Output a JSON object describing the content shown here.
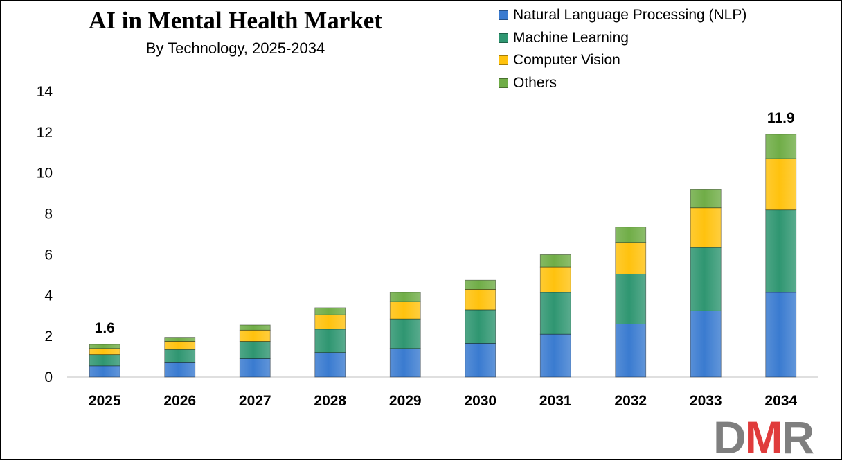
{
  "chart_data": {
    "type": "bar",
    "stacked": true,
    "title": "AI in Mental Health Market",
    "subtitle": "By Technology,  2025-2034",
    "categories": [
      "2025",
      "2026",
      "2027",
      "2028",
      "2029",
      "2030",
      "2031",
      "2032",
      "2033",
      "2034"
    ],
    "series": [
      {
        "name": "Natural Language Processing (NLP)",
        "color": "#3a7bd0",
        "values": [
          0.55,
          0.7,
          0.9,
          1.2,
          1.4,
          1.65,
          2.1,
          2.6,
          3.25,
          4.15
        ]
      },
      {
        "name": "Machine Learning",
        "color": "#2f9671",
        "values": [
          0.55,
          0.65,
          0.85,
          1.15,
          1.45,
          1.65,
          2.05,
          2.45,
          3.1,
          4.05
        ]
      },
      {
        "name": "Computer Vision",
        "color": "#ffc20e",
        "values": [
          0.3,
          0.4,
          0.55,
          0.7,
          0.85,
          1.0,
          1.25,
          1.55,
          1.95,
          2.5
        ]
      },
      {
        "name": "Others",
        "color": "#70ad47",
        "values": [
          0.2,
          0.2,
          0.25,
          0.35,
          0.45,
          0.45,
          0.6,
          0.75,
          0.9,
          1.2
        ]
      }
    ],
    "annotations": [
      {
        "category": "2025",
        "text": "1.6"
      },
      {
        "category": "2034",
        "text": "11.9"
      }
    ],
    "yticks": [
      "0",
      "2",
      "4",
      "6",
      "8",
      "10",
      "12",
      "14"
    ],
    "ylim": [
      0,
      14
    ],
    "grid": false,
    "legend_position": "top-right"
  },
  "logo": {
    "text": "DMR",
    "colors": [
      "#7f7f7f",
      "#e03c3c",
      "#7f7f7f"
    ]
  }
}
